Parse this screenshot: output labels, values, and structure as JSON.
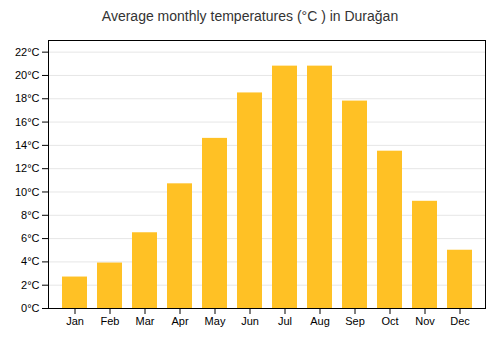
{
  "chart_data": {
    "type": "bar",
    "title": "Average monthly temperatures (°C ) in Durağan",
    "categories": [
      "Jan",
      "Feb",
      "Mar",
      "Apr",
      "May",
      "Jun",
      "Jul",
      "Aug",
      "Sep",
      "Oct",
      "Nov",
      "Dec"
    ],
    "values": [
      2.7,
      3.9,
      6.5,
      10.7,
      14.6,
      18.5,
      20.8,
      20.8,
      17.8,
      13.5,
      9.2,
      5.0
    ],
    "color": "#FFC125",
    "ylim": [
      0,
      23
    ],
    "yticks": [
      {
        "value": 0,
        "label": "0°C"
      },
      {
        "value": 2,
        "label": "2°C"
      },
      {
        "value": 4,
        "label": "4°C"
      },
      {
        "value": 6,
        "label": "6°C"
      },
      {
        "value": 8,
        "label": "8°C"
      },
      {
        "value": 10,
        "label": "10°C"
      },
      {
        "value": 12,
        "label": "12°C"
      },
      {
        "value": 14,
        "label": "14°C"
      },
      {
        "value": 16,
        "label": "16°C"
      },
      {
        "value": 18,
        "label": "18°C"
      },
      {
        "value": 20,
        "label": "20°C"
      },
      {
        "value": 22,
        "label": "22°C"
      }
    ],
    "grid": true
  }
}
